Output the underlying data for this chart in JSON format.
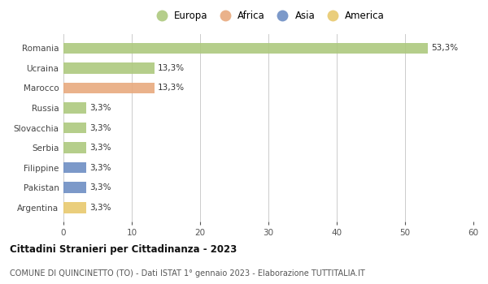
{
  "countries": [
    "Romania",
    "Ucraina",
    "Marocco",
    "Russia",
    "Slovacchia",
    "Serbia",
    "Filippine",
    "Pakistan",
    "Argentina"
  ],
  "values": [
    53.3,
    13.3,
    13.3,
    3.3,
    3.3,
    3.3,
    3.3,
    3.3,
    3.3
  ],
  "labels": [
    "53,3%",
    "13,3%",
    "13,3%",
    "3,3%",
    "3,3%",
    "3,3%",
    "3,3%",
    "3,3%",
    "3,3%"
  ],
  "colors": [
    "#adc97e",
    "#adc97e",
    "#e8aa7e",
    "#adc97e",
    "#adc97e",
    "#adc97e",
    "#6e8ec4",
    "#6e8ec4",
    "#e8c96e"
  ],
  "legend_labels": [
    "Europa",
    "Africa",
    "Asia",
    "America"
  ],
  "legend_colors": [
    "#adc97e",
    "#e8aa7e",
    "#6e8ec4",
    "#e8c96e"
  ],
  "xlim": [
    0,
    60
  ],
  "xticks": [
    0,
    10,
    20,
    30,
    40,
    50,
    60
  ],
  "title": "Cittadini Stranieri per Cittadinanza - 2023",
  "subtitle": "COMUNE DI QUINCINETTO (TO) - Dati ISTAT 1° gennaio 2023 - Elaborazione TUTTITALIA.IT",
  "bg_color": "#ffffff",
  "grid_color": "#cccccc",
  "bar_height": 0.55
}
